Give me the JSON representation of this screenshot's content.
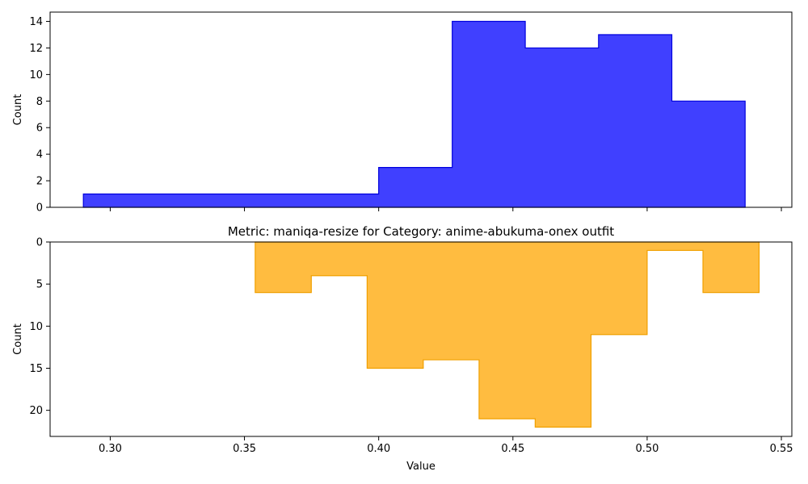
{
  "chart_data": [
    {
      "type": "histogram",
      "panel": "top",
      "title": "",
      "xlabel": "",
      "ylabel": "Count",
      "color": "#0000ff",
      "edge_color": "#0000dd",
      "y_inverted": false,
      "ylim": [
        0,
        14.7
      ],
      "yticks": [
        0,
        2,
        4,
        6,
        8,
        10,
        12,
        14
      ],
      "bin_edges": [
        0.29,
        0.4,
        0.4274,
        0.4546,
        0.4819,
        0.5092,
        0.5365
      ],
      "counts": [
        1,
        3,
        14,
        12,
        13,
        8
      ]
    },
    {
      "type": "histogram",
      "panel": "bottom",
      "title": "Metric: maniqa-resize for Category: anime-abukuma-onex outfit",
      "xlabel": "Value",
      "ylabel": "Count",
      "color": "#ffa500",
      "edge_color": "#f0a000",
      "y_inverted": true,
      "ylim": [
        0,
        23.1
      ],
      "yticks": [
        0,
        5,
        10,
        15,
        20
      ],
      "bin_edges": [
        0.354,
        0.3749,
        0.3957,
        0.4166,
        0.4374,
        0.4583,
        0.4791,
        0.5,
        0.5208,
        0.5417
      ],
      "counts": [
        6,
        4,
        15,
        14,
        21,
        22,
        11,
        1,
        6
      ]
    }
  ],
  "shared_x": {
    "xlim": [
      0.2776,
      0.5539
    ],
    "xticks": [
      0.3,
      0.35,
      0.4,
      0.45,
      0.5,
      0.55
    ],
    "xtick_labels": [
      "0.30",
      "0.35",
      "0.40",
      "0.45",
      "0.50",
      "0.55"
    ]
  }
}
